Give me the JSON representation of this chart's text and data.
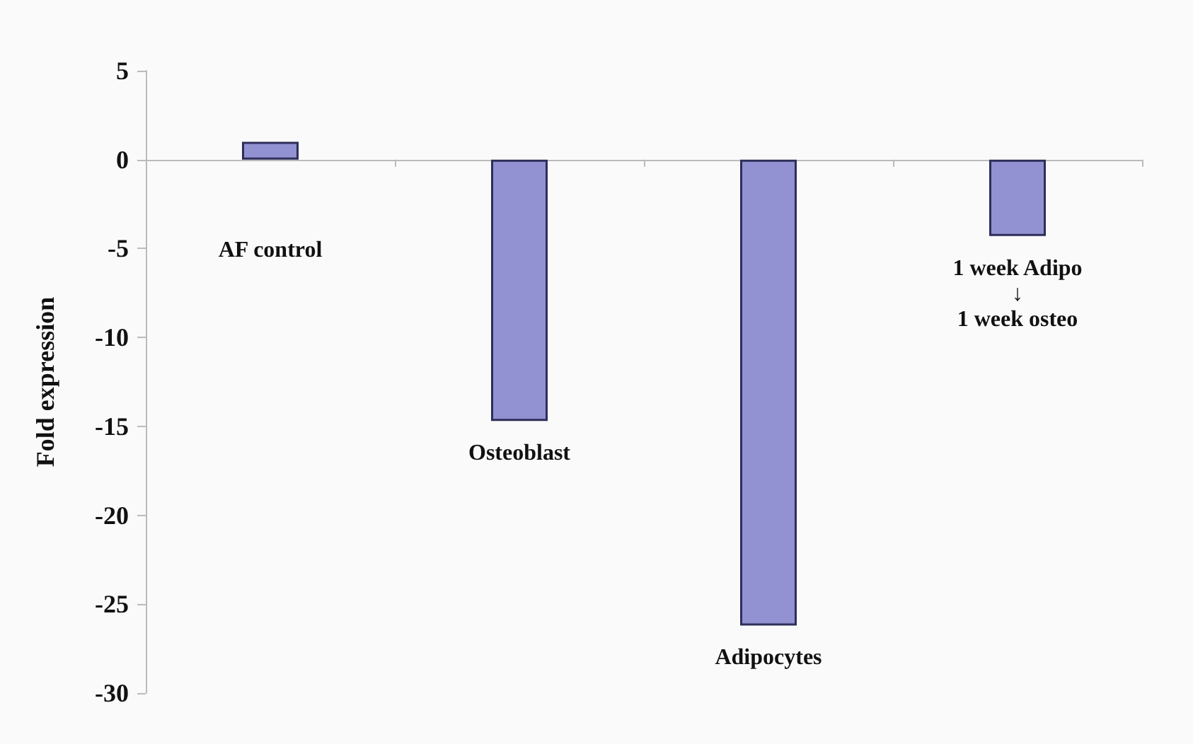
{
  "chart_data": {
    "type": "bar",
    "ylabel": "Fold expression",
    "categories": [
      "AF control",
      "Osteoblast",
      "Adipocytes",
      "1 week Adipo\n↓\n1 week osteo"
    ],
    "values": [
      1.0,
      -14.7,
      -26.2,
      -4.3
    ],
    "color": "#9292d2",
    "ylim": [
      -30,
      5
    ],
    "yticks": [
      -30,
      -25,
      -20,
      -15,
      -10,
      -5,
      0,
      5
    ]
  }
}
